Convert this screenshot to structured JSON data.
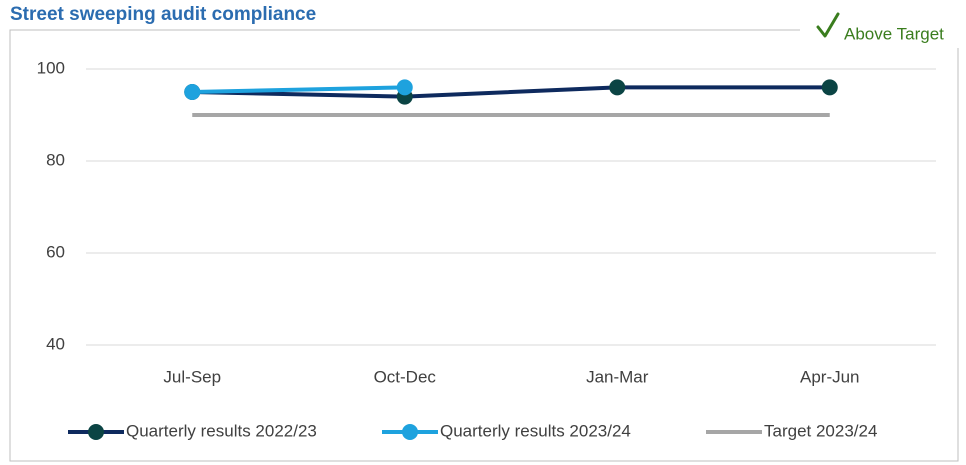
{
  "badge": "Above Target",
  "chart_data": {
    "type": "line",
    "title": "Street sweeping audit compliance",
    "categories": [
      "Jul-Sep",
      "Oct-Dec",
      "Jan-Mar",
      "Apr-Jun"
    ],
    "series": [
      {
        "name": "Quarterly results 2022/23",
        "color": "#0e2a5e",
        "marker_color": "#0b4444",
        "values": [
          95,
          94,
          96,
          96
        ]
      },
      {
        "name": "Quarterly results 2023/24",
        "color": "#1ea2de",
        "marker_color": "#1ea2de",
        "values": [
          95,
          96,
          null,
          null
        ]
      },
      {
        "name": "Target 2023/24",
        "color": "#a6a6a6",
        "values": [
          90,
          90,
          90,
          90
        ]
      }
    ],
    "ylim": [
      40,
      100
    ],
    "yticks": [
      40,
      60,
      80,
      100
    ],
    "grid": true,
    "legend": "bottom"
  }
}
